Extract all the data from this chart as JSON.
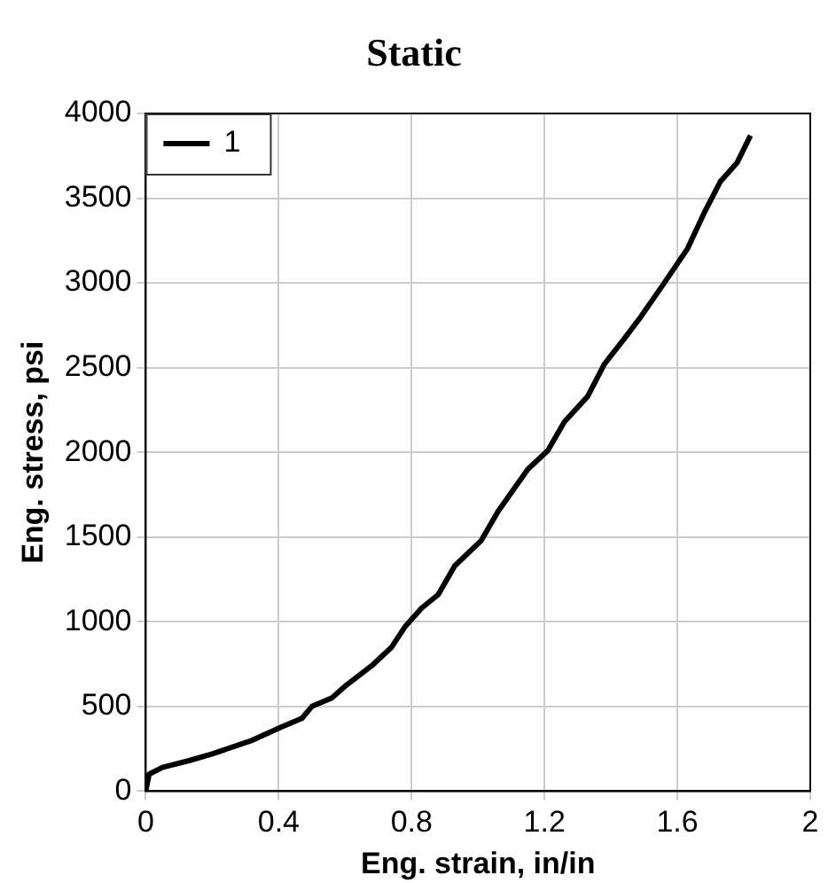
{
  "chart_data": {
    "type": "line",
    "title": "Static",
    "xlabel": "Eng. strain, in/in",
    "ylabel": "Eng. stress, psi",
    "x": [
      0,
      0.01,
      0.05,
      0.13,
      0.2,
      0.32,
      0.41,
      0.47,
      0.5,
      0.56,
      0.6,
      0.68,
      0.74,
      0.78,
      0.83,
      0.88,
      0.93,
      1.01,
      1.06,
      1.15,
      1.21,
      1.26,
      1.33,
      1.38,
      1.44,
      1.49,
      1.55,
      1.63,
      1.68,
      1.73,
      1.78,
      1.82
    ],
    "series": [
      {
        "name": "1",
        "color": "#000000",
        "values": [
          0,
          100,
          140,
          180,
          220,
          300,
          380,
          430,
          500,
          550,
          620,
          740,
          850,
          970,
          1080,
          1160,
          1330,
          1480,
          1650,
          1900,
          2010,
          2180,
          2330,
          2520,
          2670,
          2800,
          2970,
          3200,
          3410,
          3600,
          3710,
          3870
        ]
      }
    ],
    "xlim": [
      0,
      2
    ],
    "xticks": [
      0,
      0.4,
      0.8,
      1.2,
      1.6,
      2
    ],
    "ylim": [
      0,
      4000
    ],
    "yticks": [
      0,
      500,
      1000,
      1500,
      2000,
      2500,
      3000,
      3500,
      4000
    ],
    "grid": true,
    "legend": "top left",
    "marker": "none",
    "line_style": "solid"
  }
}
